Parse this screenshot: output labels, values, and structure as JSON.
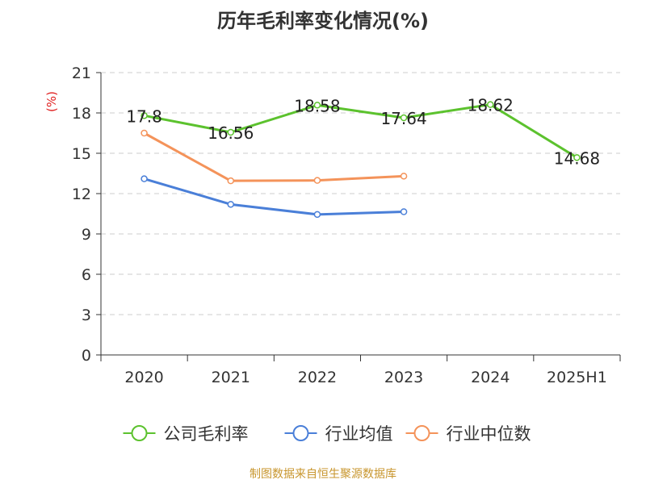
{
  "chart_data": {
    "type": "line",
    "title": "历年毛利率变化情况(%)",
    "ylabel": "(%)",
    "xlabel": "",
    "categories": [
      "2020",
      "2021",
      "2022",
      "2023",
      "2024",
      "2025H1"
    ],
    "ylim": [
      0,
      21
    ],
    "yticks": [
      0,
      3,
      6,
      9,
      12,
      15,
      18,
      21
    ],
    "grid": true,
    "legend_position": "bottom",
    "series": [
      {
        "name": "公司毛利率",
        "color": "#5cc22e",
        "values": [
          17.8,
          16.56,
          18.58,
          17.64,
          18.62,
          14.68
        ],
        "labels": [
          "17.8",
          "16.56",
          "18.58",
          "17.64",
          "18.62",
          "14.68"
        ]
      },
      {
        "name": "行业均值",
        "color": "#4a7fd8",
        "values": [
          13.1,
          11.2,
          10.45,
          10.65,
          null,
          null
        ]
      },
      {
        "name": "行业中位数",
        "color": "#f4935a",
        "values": [
          16.5,
          12.95,
          12.98,
          13.3,
          null,
          null
        ]
      }
    ]
  },
  "source": "制图数据来自恒生聚源数据库"
}
